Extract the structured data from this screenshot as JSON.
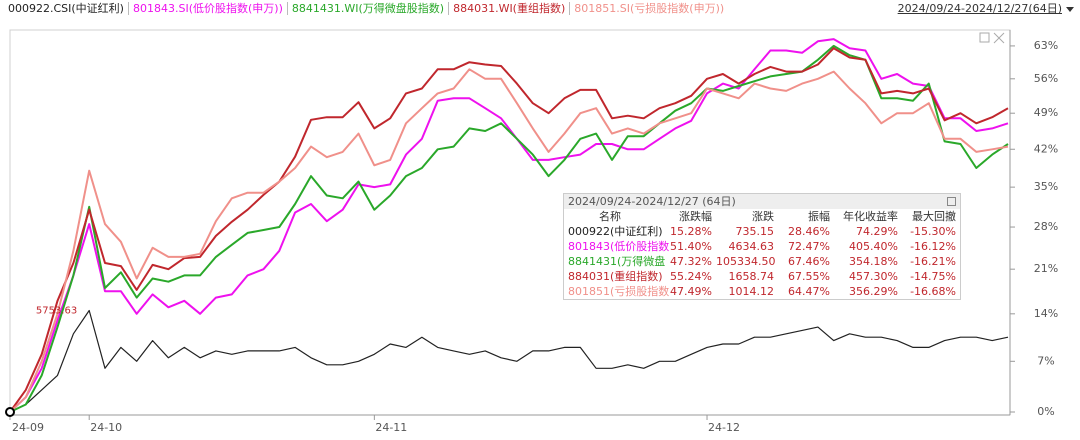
{
  "toolbar": {
    "range": "2024/09/24-2024/12/27(64日)"
  },
  "chart_data": {
    "type": "line",
    "categories": [
      "24-09",
      null,
      null,
      null,
      null,
      "24-10",
      null,
      null,
      null,
      null,
      null,
      null,
      null,
      null,
      null,
      null,
      null,
      null,
      null,
      null,
      null,
      null,
      null,
      "24-11",
      null,
      null,
      null,
      null,
      null,
      null,
      null,
      null,
      null,
      null,
      null,
      null,
      null,
      null,
      null,
      null,
      null,
      null,
      null,
      null,
      "24-12",
      null,
      null,
      null,
      null,
      null,
      null,
      null,
      null,
      null,
      null,
      null,
      null,
      null,
      null,
      null,
      null,
      null,
      null,
      null
    ],
    "yscale": "log-return",
    "ylim": [
      0,
      66.5
    ],
    "yticks": [
      {
        "value": 0,
        "label": "0%"
      },
      {
        "value": 7,
        "label": "7%"
      },
      {
        "value": 14,
        "label": "14%"
      },
      {
        "value": 21,
        "label": "21%"
      },
      {
        "value": 28,
        "label": "28%"
      },
      {
        "value": 35,
        "label": "35%"
      },
      {
        "value": 42,
        "label": "42%"
      },
      {
        "value": 49,
        "label": "49%"
      },
      {
        "value": 56,
        "label": "56%"
      },
      {
        "value": 63,
        "label": "63%"
      }
    ],
    "annotation": "5753.63",
    "series": [
      {
        "name": "000922.CSI(中证红利)",
        "color": "#222222",
        "values": [
          0,
          1,
          3,
          5,
          11,
          14.5,
          6,
          9,
          7,
          10,
          7.5,
          9,
          7.5,
          8.5,
          8,
          8.5,
          8.5,
          8.5,
          9,
          7.5,
          6.5,
          6.5,
          7,
          8,
          9.5,
          9,
          10.5,
          9,
          8.5,
          8,
          8.5,
          7.5,
          7,
          8.5,
          8.5,
          9,
          9,
          6,
          6,
          6.5,
          6,
          7,
          7,
          8,
          9,
          9.5,
          9.5,
          10.5,
          10.5,
          11,
          11.5,
          12,
          10,
          11,
          10.5,
          10.5,
          10,
          9,
          9,
          10,
          10.5,
          10.5,
          10,
          10.5
        ]
      },
      {
        "name": "801843.SI(低价股指数(申万))",
        "color": "#ee11ee",
        "values": [
          0,
          2,
          6,
          13,
          20,
          28.5,
          17.5,
          17.5,
          14,
          17,
          15,
          16,
          14,
          16.5,
          17,
          20,
          21,
          24,
          30.5,
          32,
          29,
          31,
          35.5,
          35,
          35.5,
          41,
          44,
          51.5,
          52,
          52,
          50,
          48,
          44,
          40,
          40,
          40.5,
          41,
          43,
          43,
          42,
          42,
          44,
          46,
          47.5,
          53,
          55,
          54,
          58,
          62,
          62,
          61.5,
          64,
          64.5,
          62.5,
          62,
          56,
          57,
          55,
          54.5,
          48,
          48,
          45.5,
          46,
          47
        ]
      },
      {
        "name": "8841431.WI(万得微盘股指数)",
        "color": "#2aa82a",
        "values": [
          0,
          1,
          5,
          12,
          20,
          31.5,
          18,
          20.5,
          16.5,
          19.5,
          19,
          20,
          20,
          23,
          25,
          27,
          27.5,
          28,
          32,
          37,
          33.5,
          33,
          36,
          31,
          33.5,
          37,
          38.5,
          42,
          42.5,
          46,
          45.5,
          47,
          44,
          41,
          37,
          40,
          44,
          45,
          40,
          44.5,
          44.5,
          47,
          49.5,
          51,
          54,
          53.5,
          54.5,
          55.5,
          56.5,
          57,
          57.5,
          60,
          63,
          61,
          60,
          52,
          52,
          51.5,
          55,
          43.5,
          43,
          38.5,
          41,
          43
        ]
      },
      {
        "name": "884031.WI(重组指数)",
        "color": "#c0272d",
        "values": [
          0,
          3,
          8,
          16,
          22,
          31,
          22,
          21.5,
          17.7,
          21.7,
          21,
          22.8,
          23,
          26.5,
          28.9,
          31,
          33.6,
          36,
          40.6,
          47.7,
          48.2,
          48.2,
          51.2,
          46,
          48,
          53,
          54,
          58,
          58,
          59.5,
          59,
          58.7,
          55,
          51,
          49,
          52,
          53.7,
          53.7,
          48,
          48.5,
          48,
          50,
          51,
          52.5,
          56,
          57,
          55,
          57,
          58.5,
          57.5,
          57.5,
          59,
          62.5,
          60.5,
          60,
          53,
          53.5,
          53,
          54,
          47.6,
          49,
          47,
          48.2,
          50
        ]
      },
      {
        "name": "801851.SI(亏损股指数(申万))",
        "color": "#f0908a",
        "values": [
          0,
          2,
          7,
          14,
          24,
          38,
          28.5,
          25.5,
          19.5,
          24.5,
          23,
          23,
          23.5,
          29,
          33,
          34,
          34,
          36,
          38.5,
          42.5,
          40.5,
          41.5,
          45,
          39,
          40,
          47,
          50,
          53,
          54,
          58,
          56,
          56,
          51,
          46,
          41.5,
          45,
          49,
          50,
          45,
          46,
          45,
          47,
          48,
          49,
          54,
          53,
          52,
          55,
          54,
          53.5,
          55,
          56,
          57.5,
          54,
          51,
          47,
          49,
          49,
          51,
          44,
          44,
          41.5,
          42,
          42.5
        ]
      }
    ]
  },
  "summary_table": {
    "title": "2024/09/24-2024/12/27 (64日)",
    "columns": [
      "名称",
      "涨跌幅",
      "涨跌",
      "振幅",
      "年化收益率",
      "最大回撤"
    ],
    "rows": [
      [
        "000922(中证红利)",
        "15.28%",
        "735.15",
        "28.46%",
        "74.29%",
        "-15.30%"
      ],
      [
        "801843(低价股指数",
        "51.40%",
        "4634.63",
        "72.47%",
        "405.40%",
        "-16.12%"
      ],
      [
        "8841431(万得微盘",
        "47.32%",
        "105334.50",
        "67.46%",
        "354.18%",
        "-16.21%"
      ],
      [
        "884031(重组指数)",
        "55.24%",
        "1658.74",
        "67.55%",
        "457.30%",
        "-14.75%"
      ],
      [
        "801851(亏损股指数",
        "47.49%",
        "1014.12",
        "64.47%",
        "356.29%",
        "-16.68%"
      ]
    ]
  }
}
